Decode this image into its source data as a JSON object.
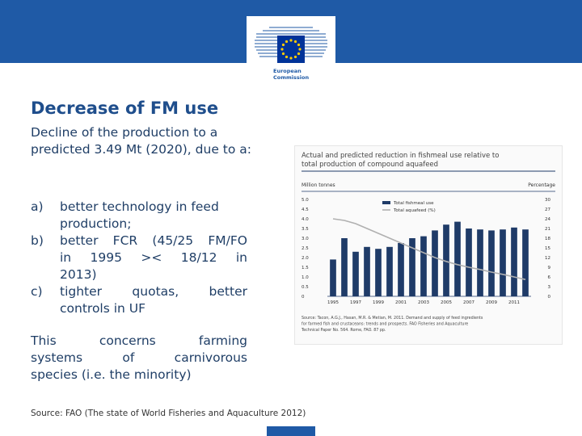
{
  "slide": {
    "title": "Decrease of FM use",
    "intro": "Decline of the production to a predicted 3.49 Mt (2020), due to a:",
    "items": [
      {
        "marker": "a)",
        "lines": [
          "better technology in feed",
          "production;"
        ]
      },
      {
        "marker": "b)",
        "lines": [
          "better FCR (45/25 FM/FO",
          "in 1995 >< 18/12 in",
          "2013)"
        ]
      },
      {
        "marker": "c)",
        "lines": [
          "tighter quotas, better",
          "controls in UF"
        ]
      }
    ],
    "note_lines": [
      "This concerns farming",
      "systems of carnivorous",
      "species (i.e. the minority)"
    ],
    "source": "Source: FAO (The state of World Fisheries and Aquaculture 2012)"
  },
  "logo": {
    "org_line1": "European",
    "org_line2": "Commission",
    "flag_color": "#003399",
    "star_color": "#ffcc00"
  },
  "colors": {
    "header": "#1f5aa6",
    "title": "#1f4e8c",
    "bar": "#1f3b68",
    "line": "#b0b0b0"
  },
  "chart_data": {
    "type": "bar",
    "title": "Actual and predicted reduction in fishmeal use relative to total production of compound aquafeed",
    "left_axis_label": "Million tonnes",
    "right_axis_label": "Percentage",
    "legend": [
      "Total fishmeal use",
      "Total aquafeed (%)"
    ],
    "legend_position": "top-center",
    "categories": [
      "1995",
      "1996",
      "1997",
      "1998",
      "1999",
      "2000",
      "2001",
      "2002",
      "2003",
      "2004",
      "2005",
      "2006",
      "2007",
      "2008",
      "2009",
      "2010",
      "2011",
      "2012"
    ],
    "y_left_lim": [
      0,
      5.0
    ],
    "y_right_lim": [
      0,
      30
    ],
    "y_left_ticks": [
      "0",
      "0.5",
      "1.0",
      "1.5",
      "2.0",
      "2.5",
      "3.0",
      "3.5",
      "4.0",
      "4.5",
      "5.0"
    ],
    "y_right_ticks": [
      "0",
      "3",
      "6",
      "9",
      "12",
      "15",
      "18",
      "21",
      "24",
      "27",
      "30"
    ],
    "x_tick_labels": [
      "1995",
      "1997",
      "1999",
      "2001",
      "2003",
      "2005",
      "2007",
      "2009",
      "2011"
    ],
    "series": [
      {
        "name": "Total fishmeal use",
        "kind": "bar",
        "axis": "left",
        "values": [
          1.9,
          3.0,
          2.3,
          2.55,
          2.45,
          2.55,
          2.75,
          3.0,
          3.1,
          3.4,
          3.7,
          3.85,
          3.5,
          3.45,
          3.4,
          3.45,
          3.55,
          3.45
        ]
      },
      {
        "name": "Total aquafeed (%)",
        "kind": "line",
        "axis": "right",
        "values": [
          24.0,
          23.5,
          22.5,
          21.0,
          19.5,
          18.0,
          16.5,
          15.0,
          13.5,
          12.0,
          10.8,
          9.8,
          9.0,
          8.3,
          7.5,
          6.8,
          6.0,
          5.2
        ]
      }
    ],
    "footnote": "Source: Tacon, A.G.J., Hasan, M.R. & Metian, M. 2011. Demand and supply of feed ingredients for farmed fish and crustaceans: trends and prospects. FAO Fisheries and Aquaculture Technical Paper No. 564. Rome, FAO. 87 pp.",
    "grid": false
  }
}
